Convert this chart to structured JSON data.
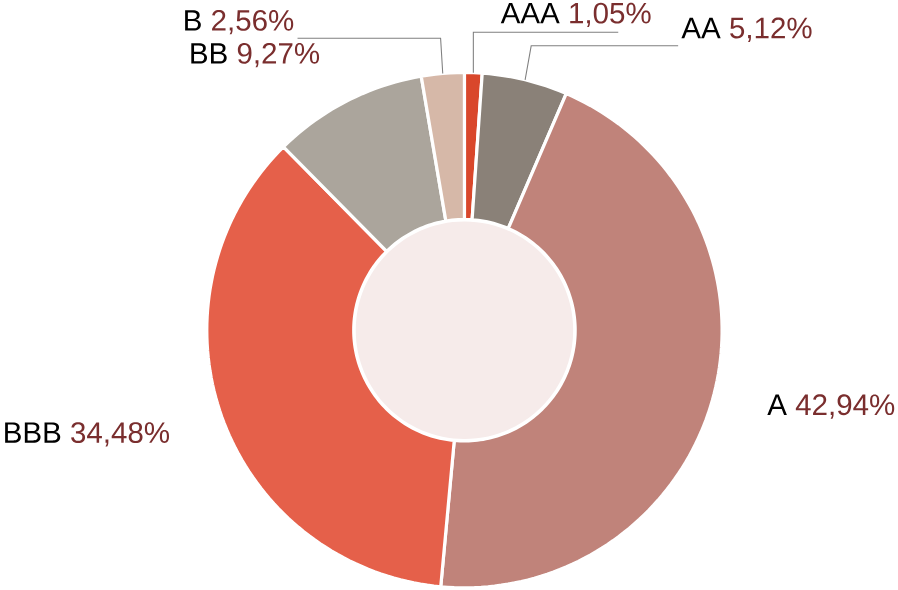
{
  "chart_data": {
    "type": "donut",
    "categories": [
      "AAA",
      "AA",
      "A",
      "BBB",
      "BB",
      "B"
    ],
    "values": [
      1.05,
      5.12,
      42.94,
      34.48,
      9.27,
      2.56
    ],
    "value_labels": [
      "1,05%",
      "5,12%",
      "42,94%",
      "34,48%",
      "9,27%",
      "2,56%"
    ],
    "colors": [
      "#d9472b",
      "#8a8178",
      "#c0837a",
      "#e5604a",
      "#aba59c",
      "#d6b8a8"
    ]
  }
}
